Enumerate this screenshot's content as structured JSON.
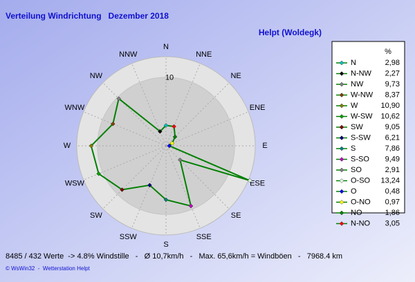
{
  "chart_data": {
    "type": "radar",
    "title": "Verteilung Windrichtung   Dezember 2018",
    "subtitle": "Helpt (Woldegk)",
    "categories": [
      "N",
      "NNE",
      "NE",
      "ENE",
      "E",
      "ESE",
      "SE",
      "SSE",
      "S",
      "SSW",
      "SW",
      "WSW",
      "W",
      "WNW",
      "NW",
      "NNW"
    ],
    "legend_header": "%",
    "labels": [
      "N",
      "N-NW",
      "NW",
      "W-NW",
      "W",
      "W-SW",
      "SW",
      "S-SW",
      "S",
      "S-SO",
      "SO",
      "O-SO",
      "O",
      "O-NO",
      "NO",
      "N-NO"
    ],
    "values": [
      2.98,
      2.27,
      9.73,
      8.37,
      10.9,
      10.62,
      9.05,
      6.21,
      7.86,
      9.49,
      2.91,
      13.24,
      0.48,
      0.97,
      1.86,
      3.05
    ],
    "value_labels": [
      "2,98",
      "2,27",
      "9,73",
      "8,37",
      "10,90",
      "10,62",
      "9,05",
      "6,21",
      "7,86",
      "9,49",
      "2,91",
      "13,24",
      "0,48",
      "0,97",
      "1,86",
      "3,05"
    ],
    "colors": [
      "#00c0c0",
      "#000000",
      "#808080",
      "#804000",
      "#808000",
      "#00a000",
      "#800000",
      "#000080",
      "#008080",
      "#c000c0",
      "#808080",
      "#e0ffe0",
      "#0000ff",
      "#ffff00",
      "#008000",
      "#ff0000"
    ],
    "line_color": "#008000",
    "rlim": [
      0,
      13
    ],
    "rticks": [
      10
    ],
    "footer": "8485 / 432 Werte  -> 4.8% Windstille   -   Ø 10,7km/h   -   Max. 65,6km/h = Windböen   -   7968.4 km",
    "credit": "© WsWin32  -  Wetterstation Helpt"
  }
}
